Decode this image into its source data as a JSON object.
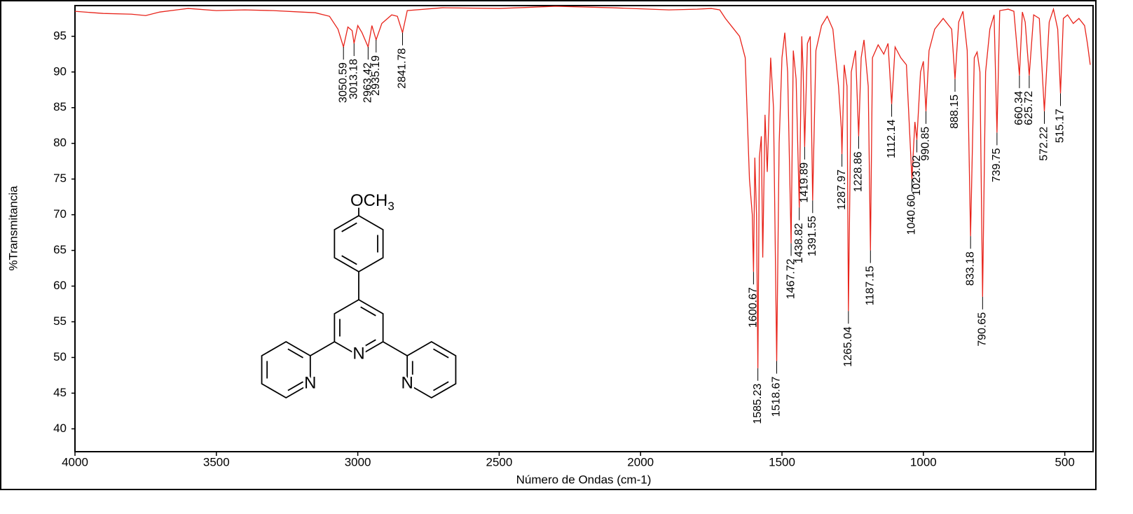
{
  "chart_data": {
    "type": "line",
    "x_label": "Número de Ondas (cm-1)",
    "y_label": "%Transmitancia",
    "color": "#e8231a",
    "xlim": [
      4000,
      400
    ],
    "ylim": [
      36.8,
      99.3
    ],
    "xticks": [
      4000,
      3500,
      3000,
      2500,
      2000,
      1500,
      1000,
      500
    ],
    "yticks": [
      40,
      45,
      50,
      55,
      60,
      65,
      70,
      75,
      80,
      85,
      90,
      95
    ],
    "x": [
      4000,
      3900,
      3800,
      3750,
      3700,
      3600,
      3500,
      3400,
      3300,
      3200,
      3150,
      3100,
      3070,
      3050.59,
      3035,
      3020,
      3013.18,
      3000,
      2985,
      2963.42,
      2950,
      2935.19,
      2915,
      2880,
      2860,
      2841.78,
      2825,
      2700,
      2500,
      2300,
      2100,
      1900,
      1800,
      1750,
      1720,
      1700,
      1680,
      1650,
      1630,
      1615,
      1605,
      1600.67,
      1596,
      1590,
      1585.23,
      1580,
      1573,
      1568,
      1560,
      1552,
      1540,
      1530,
      1518.67,
      1510,
      1500,
      1490,
      1480,
      1467.72,
      1460,
      1450,
      1438.82,
      1430,
      1425,
      1419.89,
      1410,
      1400,
      1391.55,
      1380,
      1360,
      1340,
      1320,
      1300,
      1290,
      1287.97,
      1280,
      1270,
      1265.04,
      1255,
      1240,
      1228.86,
      1220,
      1210,
      1195,
      1187.15,
      1180,
      1160,
      1140,
      1125,
      1112.14,
      1100,
      1080,
      1060,
      1040.6,
      1030,
      1023.02,
      1010,
      1000,
      990.85,
      980,
      960,
      930,
      900,
      888.15,
      875,
      860,
      845,
      833.18,
      820,
      810,
      800,
      790.65,
      780,
      765,
      750,
      739.75,
      730,
      700,
      680,
      660.34,
      650,
      640,
      625.72,
      610,
      590,
      572.22,
      555,
      540,
      525,
      515.17,
      505,
      490,
      470,
      450,
      430,
      420,
      410
    ],
    "values": [
      98.5,
      98.2,
      98.1,
      97.9,
      98.4,
      98.9,
      98.6,
      98.7,
      98.6,
      98.4,
      98.3,
      97.8,
      96,
      93.5,
      96.3,
      95.8,
      94,
      96.5,
      95.5,
      93.5,
      96.5,
      94.5,
      96.8,
      98,
      97.8,
      95.5,
      98.6,
      99,
      98.9,
      99.2,
      99,
      98.7,
      98.8,
      98.9,
      98.7,
      97.5,
      96.5,
      95,
      92,
      75,
      70,
      62,
      78,
      70,
      48.5,
      78,
      81,
      64,
      84,
      76,
      92,
      85,
      49.5,
      80,
      92,
      95.5,
      90,
      66,
      93,
      89,
      71,
      95,
      90,
      79.5,
      94,
      95,
      72,
      93,
      96.5,
      97.8,
      96,
      88,
      82,
      78.5,
      91,
      88,
      56.5,
      90,
      93,
      81,
      92,
      94.5,
      88,
      65,
      92,
      93.8,
      92.5,
      94,
      85.5,
      93.5,
      92,
      91,
      75,
      83,
      80.5,
      90,
      91.5,
      84.5,
      93,
      96,
      97.5,
      96,
      89,
      97,
      98.5,
      93,
      67,
      92,
      92.8,
      90,
      58.5,
      90,
      96,
      98,
      81.5,
      98.6,
      98.8,
      98.5,
      89.5,
      98.4,
      97,
      89.5,
      98,
      97.5,
      84.5,
      97,
      98.8,
      96,
      87,
      97.5,
      98,
      96.8,
      97.5,
      96.5,
      94,
      91
    ],
    "annotations": [
      {
        "x": 3050.59,
        "y": 93.5,
        "label": "3050.59"
      },
      {
        "x": 3013.18,
        "y": 94,
        "label": "3013.18"
      },
      {
        "x": 2963.42,
        "y": 93.5,
        "label": "2963.42"
      },
      {
        "x": 2935.19,
        "y": 94.5,
        "label": "2935.19"
      },
      {
        "x": 2841.78,
        "y": 95.5,
        "label": "2841.78"
      },
      {
        "x": 1600.67,
        "y": 62,
        "label": "1600.67"
      },
      {
        "x": 1585.23,
        "y": 48.5,
        "label": "1585.23"
      },
      {
        "x": 1518.67,
        "y": 49.5,
        "label": "1518.67"
      },
      {
        "x": 1467.72,
        "y": 66,
        "label": "1467.72"
      },
      {
        "x": 1438.82,
        "y": 71,
        "label": "1438.82"
      },
      {
        "x": 1419.89,
        "y": 79.5,
        "label": "1419.89"
      },
      {
        "x": 1391.55,
        "y": 72,
        "label": "1391.55"
      },
      {
        "x": 1287.97,
        "y": 78.5,
        "label": "1287.97"
      },
      {
        "x": 1265.04,
        "y": 56.5,
        "label": "1265.04"
      },
      {
        "x": 1228.86,
        "y": 81,
        "label": "1228.86"
      },
      {
        "x": 1187.15,
        "y": 65,
        "label": "1187.15"
      },
      {
        "x": 1112.14,
        "y": 85.5,
        "label": "1112.14"
      },
      {
        "x": 1040.6,
        "y": 75,
        "label": "1040.60"
      },
      {
        "x": 1023.02,
        "y": 80.5,
        "label": "1023.02"
      },
      {
        "x": 990.85,
        "y": 84.5,
        "label": "990.85"
      },
      {
        "x": 888.15,
        "y": 89,
        "label": "888.15"
      },
      {
        "x": 833.18,
        "y": 67,
        "label": "833.18"
      },
      {
        "x": 790.65,
        "y": 58.5,
        "label": "790.65"
      },
      {
        "x": 739.75,
        "y": 81.5,
        "label": "739.75"
      },
      {
        "x": 660.34,
        "y": 89.5,
        "label": "660.34"
      },
      {
        "x": 625.72,
        "y": 89.5,
        "label": "625.72"
      },
      {
        "x": 572.22,
        "y": 84.5,
        "label": "572.22"
      },
      {
        "x": 515.17,
        "y": 87,
        "label": "515.17"
      }
    ],
    "molecule": {
      "substituent": "OCH",
      "subscript": "3",
      "atoms": [
        "N",
        "N",
        "N"
      ]
    }
  }
}
